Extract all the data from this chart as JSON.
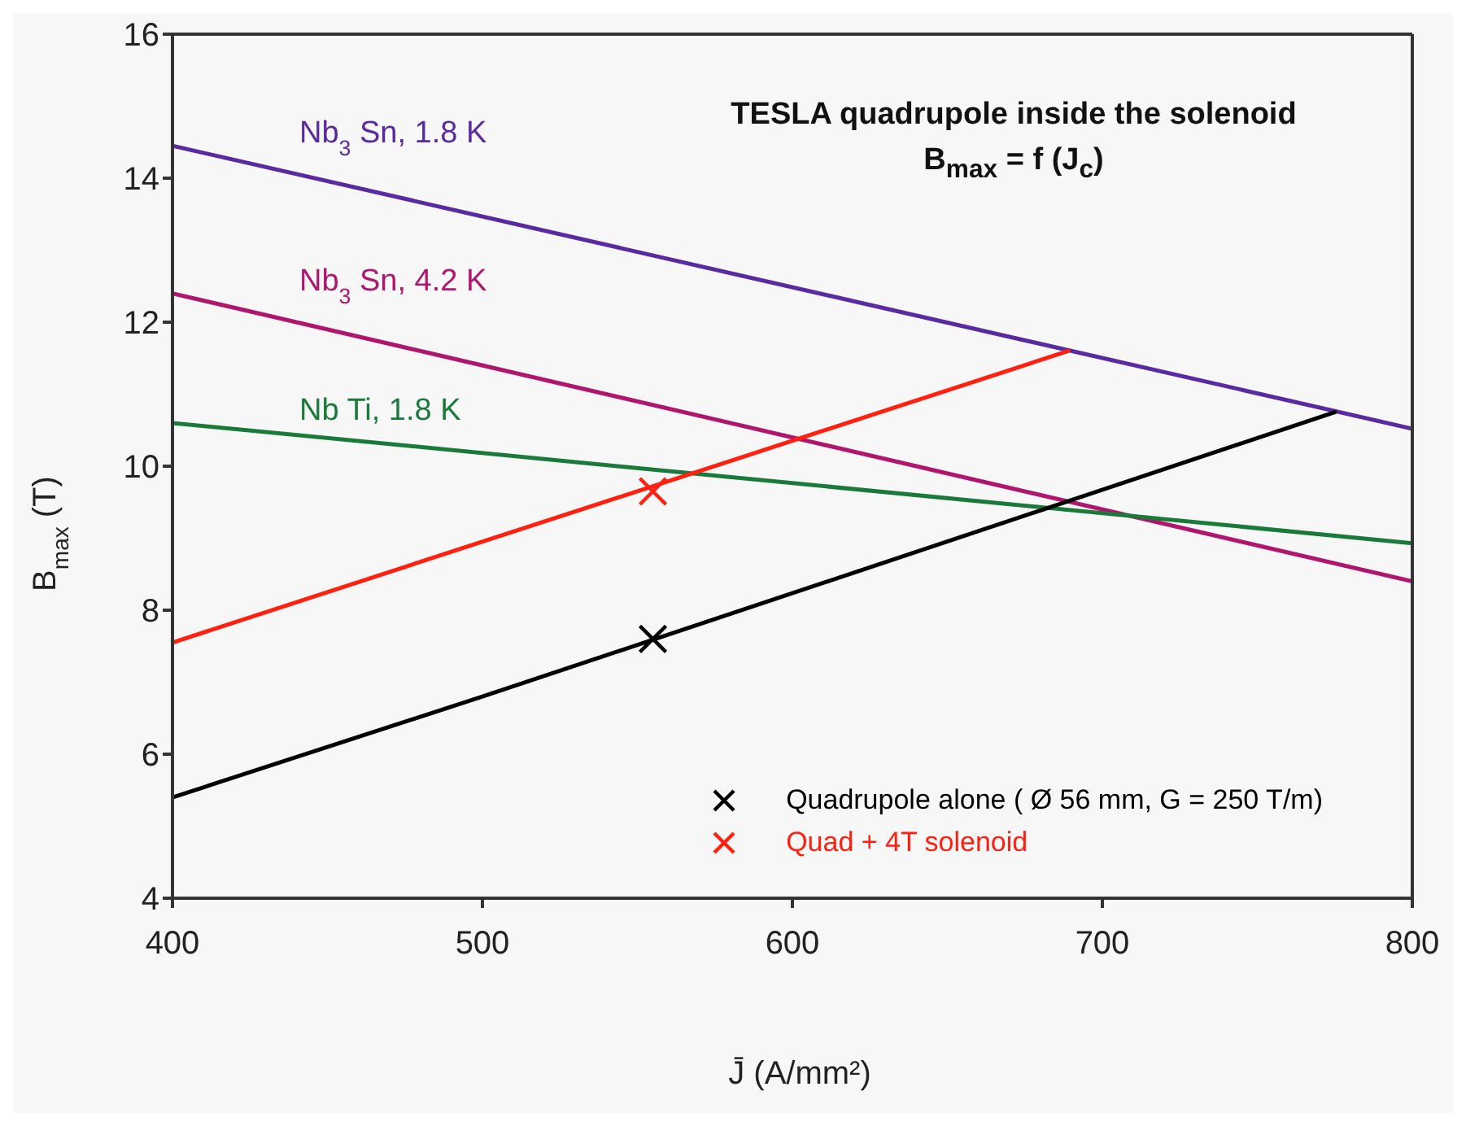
{
  "chart_data": {
    "type": "line",
    "title": "TESLA quadrupole inside the solenoid",
    "subtitle": "B$_{max}$ = f (J$_{c}$)",
    "xlabel": "J̄ (A/mm²)",
    "ylabel": "B$_{max}$ (T)",
    "xlim": [
      400,
      800
    ],
    "xticks": [
      400,
      500,
      600,
      700,
      800
    ],
    "ylim": [
      4,
      16
    ],
    "yticks": [
      4,
      6,
      8,
      10,
      12,
      14,
      16
    ],
    "grid": false,
    "legend": "bottom right",
    "marker": "none",
    "line_style": "solid",
    "series": [
      {
        "name": "Nb$_{3}$ Sn, 1.8 K",
        "color": "#5a2aa0",
        "x": [
          400,
          800
        ],
        "values": [
          14.45,
          10.52
        ]
      },
      {
        "name": "Nb$_{3}$ Sn, 4.2 K",
        "color": "#b0166e",
        "x": [
          400,
          800
        ],
        "values": [
          12.4,
          8.4
        ]
      },
      {
        "name": "Nb Ti, 1.8 K",
        "color": "#1a7a3a",
        "x": [
          400,
          800
        ],
        "values": [
          10.6,
          8.93
        ]
      },
      {
        "color": "#ff2010",
        "x": [
          400,
          689
        ],
        "values": [
          7.55,
          11.6
        ]
      },
      {
        "color": "#000000",
        "x": [
          400,
          500,
          775
        ],
        "values": [
          5.4,
          6.8,
          10.75
        ]
      },
      {
        "type": "scatter",
        "name": "Quadrupole alone ( Ø 56 mm, G = 250 T/m)",
        "color": "#000000",
        "marker": "cross",
        "x": [
          555
        ],
        "values": [
          7.6
        ]
      },
      {
        "type": "scatter",
        "name": "Quad + 4T solenoid",
        "color": "#ff2010",
        "marker": "cross",
        "x": [
          555
        ],
        "values": [
          9.65
        ]
      }
    ]
  }
}
